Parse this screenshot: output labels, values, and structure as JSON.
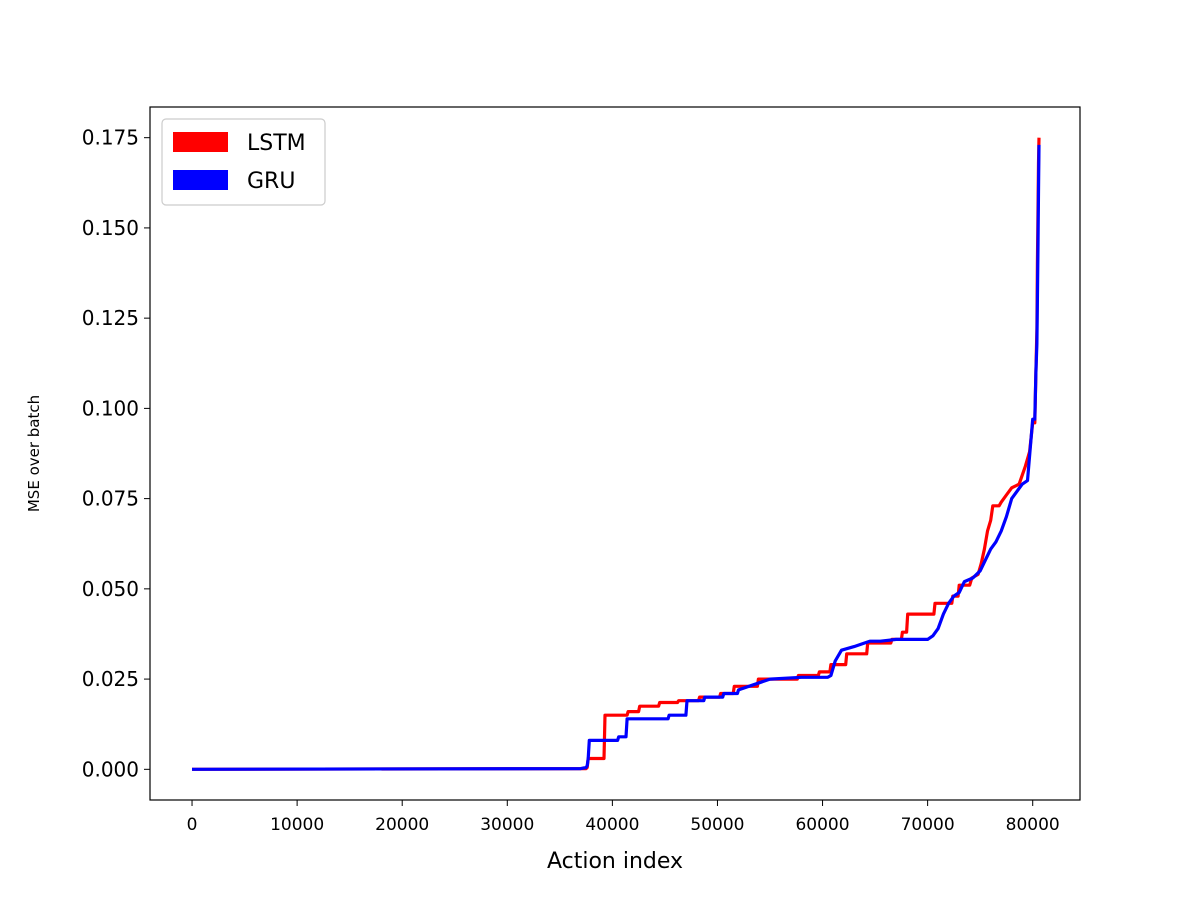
{
  "chart_data": {
    "type": "line",
    "title": "",
    "xlabel": "Action index",
    "ylabel": "MSE over batch",
    "xlim": [
      -4000,
      84500
    ],
    "ylim": [
      -0.0085,
      0.1835
    ],
    "x_ticks": [
      0,
      10000,
      20000,
      30000,
      40000,
      50000,
      60000,
      70000,
      80000
    ],
    "y_ticks": [
      0.0,
      0.025,
      0.05,
      0.075,
      0.1,
      0.125,
      0.15,
      0.175
    ],
    "x_tick_labels": [
      "0",
      "10000",
      "20000",
      "30000",
      "40000",
      "50000",
      "60000",
      "70000",
      "80000"
    ],
    "y_tick_labels": [
      "0.000",
      "0.025",
      "0.050",
      "0.075",
      "0.100",
      "0.125",
      "0.150",
      "0.175"
    ],
    "grid": false,
    "legend_position": "top-left",
    "series": [
      {
        "name": "LSTM",
        "color": "#ff0000",
        "x": [
          0,
          37500,
          37600,
          37700,
          38000,
          39200,
          39300,
          41400,
          41500,
          42500,
          42600,
          44400,
          44500,
          46200,
          46300,
          48200,
          48300,
          50200,
          50300,
          51500,
          51600,
          53800,
          53900,
          57600,
          57700,
          59600,
          59700,
          60700,
          60800,
          62200,
          62300,
          64200,
          64300,
          66500,
          66600,
          67500,
          67600,
          68000,
          68100,
          70600,
          70700,
          72300,
          72400,
          72900,
          73000,
          74000,
          74200,
          74800,
          75100,
          75400,
          75700,
          76000,
          76200,
          76800,
          77000,
          77500,
          78000,
          78700,
          79300,
          79700,
          80000,
          80200,
          80300,
          80400,
          80450,
          80500,
          80550,
          80600
        ],
        "y": [
          0.0,
          0.0002,
          0.0005,
          0.003,
          0.003,
          0.003,
          0.015,
          0.015,
          0.016,
          0.016,
          0.0175,
          0.0175,
          0.0185,
          0.0185,
          0.019,
          0.019,
          0.02,
          0.02,
          0.021,
          0.021,
          0.023,
          0.023,
          0.025,
          0.025,
          0.026,
          0.026,
          0.027,
          0.027,
          0.029,
          0.029,
          0.032,
          0.032,
          0.035,
          0.035,
          0.036,
          0.036,
          0.038,
          0.038,
          0.043,
          0.043,
          0.046,
          0.046,
          0.048,
          0.048,
          0.051,
          0.051,
          0.053,
          0.054,
          0.057,
          0.061,
          0.066,
          0.069,
          0.073,
          0.073,
          0.074,
          0.076,
          0.078,
          0.079,
          0.084,
          0.088,
          0.096,
          0.096,
          0.11,
          0.122,
          0.14,
          0.155,
          0.168,
          0.175
        ]
      },
      {
        "name": "GRU",
        "color": "#0000ff",
        "x": [
          0,
          37000,
          37500,
          37600,
          37700,
          37800,
          40500,
          40600,
          41300,
          41400,
          45300,
          45400,
          47000,
          47100,
          48700,
          48800,
          50500,
          50600,
          51900,
          52000,
          54000,
          55000,
          58000,
          60500,
          60800,
          61200,
          61800,
          63000,
          64000,
          64500,
          65500,
          67000,
          69000,
          70000,
          70500,
          71000,
          71500,
          72000,
          72500,
          73000,
          73500,
          74300,
          75000,
          75500,
          76000,
          76500,
          77000,
          77500,
          78000,
          78500,
          79000,
          79500,
          80000,
          80200,
          80300,
          80400,
          80450,
          80500,
          80550,
          80600
        ],
        "y": [
          0.0,
          0.0002,
          0.0005,
          0.001,
          0.003,
          0.008,
          0.008,
          0.009,
          0.009,
          0.014,
          0.014,
          0.015,
          0.015,
          0.019,
          0.019,
          0.02,
          0.02,
          0.021,
          0.021,
          0.022,
          0.024,
          0.025,
          0.0255,
          0.0255,
          0.026,
          0.03,
          0.033,
          0.034,
          0.035,
          0.0355,
          0.0355,
          0.036,
          0.036,
          0.036,
          0.037,
          0.039,
          0.043,
          0.046,
          0.048,
          0.049,
          0.052,
          0.053,
          0.055,
          0.058,
          0.061,
          0.063,
          0.066,
          0.07,
          0.075,
          0.077,
          0.079,
          0.08,
          0.097,
          0.097,
          0.11,
          0.118,
          0.13,
          0.145,
          0.16,
          0.173
        ]
      }
    ]
  }
}
